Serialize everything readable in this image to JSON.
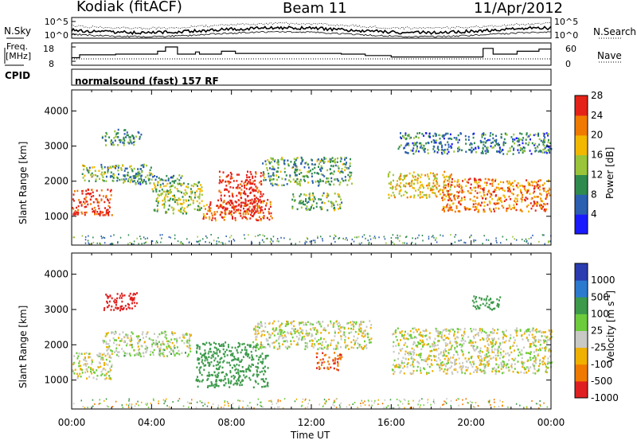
{
  "header": {
    "station": "Kodiak (fitACF)",
    "beam": "Beam 11",
    "date": "11/Apr/2012"
  },
  "status_panel": {
    "nsky_label": "N.Sky",
    "nsearch_label": "N.Search",
    "freq_label_line1": "Freq.",
    "freq_label_line2": "[MHz]",
    "nave_label": "Nave",
    "cpid_label": "CPID",
    "noise_ticks": [
      "10^5",
      "10^0"
    ],
    "freq_ticks": [
      "18",
      "8"
    ],
    "nave_ticks": [
      "60",
      "0"
    ],
    "cpid_text": "normalsound (fast) 157 RF",
    "freq_steps_mhz": [
      [
        0,
        10.5
      ],
      [
        0.4,
        12.5
      ],
      [
        2.2,
        13
      ],
      [
        4.3,
        15
      ],
      [
        4.7,
        18
      ],
      [
        5.3,
        13
      ],
      [
        6.2,
        14.5
      ],
      [
        6.4,
        13
      ],
      [
        7.5,
        15
      ],
      [
        8.2,
        13.5
      ],
      [
        13.5,
        13
      ],
      [
        14.7,
        12
      ],
      [
        16,
        11
      ],
      [
        19.5,
        11
      ],
      [
        20.6,
        17
      ],
      [
        21.1,
        13
      ],
      [
        22.3,
        15
      ],
      [
        23.4,
        16.5
      ]
    ]
  },
  "chart_data": [
    {
      "type": "heatmap",
      "title": "",
      "xlabel": "",
      "ylabel": "Slant Range [km]",
      "xlim": [
        0,
        24
      ],
      "ylim": [
        180,
        4600
      ],
      "y_ticks": [
        1000,
        2000,
        3000,
        4000
      ],
      "colorbar_label": "Power [dB]",
      "colorbar_ticks": [
        4,
        8,
        12,
        16,
        20,
        24,
        28
      ],
      "colorbar_colors": [
        "#1a1aff",
        "#2b5fb0",
        "#2f8a4e",
        "#9ac43a",
        "#f2b800",
        "#f07a00",
        "#e52218"
      ],
      "structures": [
        {
          "t": [
            0.0,
            2.0
          ],
          "range": [
            1050,
            1800
          ],
          "power_db": 26
        },
        {
          "t": [
            0.5,
            4.0
          ],
          "range": [
            2000,
            2500
          ],
          "power_db": 12
        },
        {
          "t": [
            1.5,
            3.5
          ],
          "range": [
            3050,
            3500
          ],
          "power_db": 10
        },
        {
          "t": [
            2.5,
            5.5
          ],
          "range": [
            1900,
            2200
          ],
          "power_db": 9
        },
        {
          "t": [
            4.0,
            6.5
          ],
          "range": [
            1100,
            2000
          ],
          "power_db": 14
        },
        {
          "t": [
            6.5,
            10.0
          ],
          "range": [
            900,
            1500
          ],
          "power_db": 24
        },
        {
          "t": [
            7.3,
            9.6
          ],
          "range": [
            1100,
            2300
          ],
          "power_db": 28
        },
        {
          "t": [
            9.5,
            14.0
          ],
          "range": [
            1900,
            2700
          ],
          "power_db": 11
        },
        {
          "t": [
            11.0,
            13.5
          ],
          "range": [
            1200,
            1700
          ],
          "power_db": 12
        },
        {
          "t": [
            15.8,
            19.0
          ],
          "range": [
            1550,
            2300
          ],
          "power_db": 18
        },
        {
          "t": [
            18.5,
            23.9
          ],
          "range": [
            1150,
            2100
          ],
          "power_db": 22
        },
        {
          "t": [
            16.3,
            24.0
          ],
          "range": [
            2800,
            3400
          ],
          "power_db": 8
        }
      ]
    },
    {
      "type": "heatmap",
      "title": "",
      "xlabel": "Time UT",
      "ylabel": "Slant Range [km]",
      "xlim": [
        0,
        24
      ],
      "ylim": [
        180,
        4600
      ],
      "x_ticks": [
        "00:00",
        "04:00",
        "08:00",
        "12:00",
        "16:00",
        "20:00",
        "00:00"
      ],
      "y_ticks": [
        1000,
        2000,
        3000,
        4000
      ],
      "colorbar_label": "Velocity [m s^-1]",
      "colorbar_label_parts": {
        "main": "Velocity [m s",
        "superscript": "-1",
        "close": "]"
      },
      "colorbar_ticks": [
        1000,
        500,
        100,
        25,
        -25,
        -100,
        -500,
        -1000
      ],
      "colorbar_colors": [
        "#2a3cb0",
        "#2c7ad0",
        "#3c9a4a",
        "#6ccc3c",
        "#c8c8c4",
        "#f0b000",
        "#f07a00",
        "#e02020"
      ],
      "structures": [
        {
          "t": [
            0.0,
            2.0
          ],
          "range": [
            1050,
            1800
          ],
          "velocity_ms": 0
        },
        {
          "t": [
            1.5,
            3.3
          ],
          "range": [
            3000,
            3500
          ],
          "velocity_ms": -400
        },
        {
          "t": [
            1.5,
            6.0
          ],
          "range": [
            1700,
            2400
          ],
          "velocity_ms": 10
        },
        {
          "t": [
            6.2,
            9.8
          ],
          "range": [
            800,
            2100
          ],
          "velocity_ms": 150
        },
        {
          "t": [
            9.0,
            15.0
          ],
          "range": [
            1900,
            2700
          ],
          "velocity_ms": 0
        },
        {
          "t": [
            12.2,
            13.5
          ],
          "range": [
            1300,
            1800
          ],
          "velocity_ms": -300
        },
        {
          "t": [
            16.0,
            24.0
          ],
          "range": [
            1200,
            2500
          ],
          "velocity_ms": 0
        },
        {
          "t": [
            20.0,
            21.5
          ],
          "range": [
            3000,
            3400
          ],
          "velocity_ms": 120
        }
      ]
    }
  ]
}
